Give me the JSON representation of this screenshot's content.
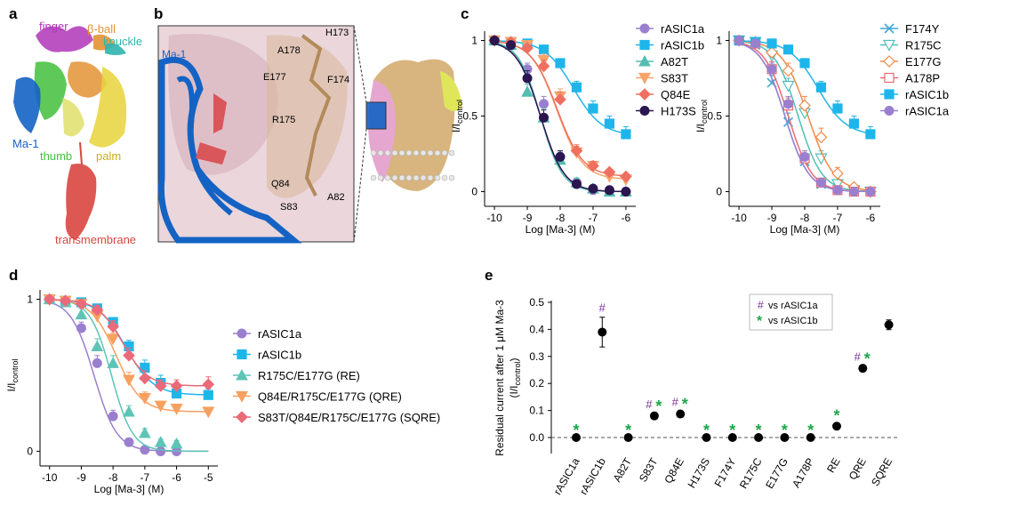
{
  "panels": {
    "a": "a",
    "b": "b",
    "c": "c",
    "d": "d",
    "e": "e"
  },
  "structure_a": {
    "labels": [
      {
        "key": "finger",
        "text": "finger",
        "color": "#b035b8"
      },
      {
        "key": "beta_ball",
        "text": "β-ball",
        "color": "#e39234"
      },
      {
        "key": "knuckle",
        "text": "knuckle",
        "color": "#2fb5ad"
      },
      {
        "key": "ma1",
        "text": "Ma-1",
        "color": "#1463c4"
      },
      {
        "key": "thumb",
        "text": "thumb",
        "color": "#42bf3c"
      },
      {
        "key": "palm",
        "text": "palm",
        "color": "#e3c82a"
      },
      {
        "key": "tm",
        "text": "transmembrane",
        "color": "#d9463f"
      }
    ]
  },
  "structure_b": {
    "ma1_label": "Ma-1",
    "residues": [
      "H173",
      "A178",
      "E177",
      "F174",
      "R175",
      "Q84",
      "A82",
      "S83"
    ]
  },
  "colors": {
    "rASIC1a": "#9b7fcf",
    "rASIC1b": "#1eb6ea",
    "A82T": "#55bdb2",
    "S83T": "#f7a46b",
    "Q84E": "#ef7060",
    "H173S": "#2b1650",
    "F174Y": "#3fa9d8",
    "R175C": "#4fbfb8",
    "E177G": "#f08a4b",
    "A178P": "#ea6a72",
    "RE": "#5ec4b6",
    "QRE": "#f7a060",
    "SQRE": "#ea6a7a",
    "hash": "#7b2d93",
    "star": "#1fa64a"
  },
  "chart_data": [
    {
      "id": "c_left",
      "type": "line",
      "xlabel": "Log [Ma-3] (M)",
      "ylabel": "I/I",
      "ylabel_sub": "control",
      "xlim": [
        -10.3,
        -5.7
      ],
      "ylim": [
        -0.05,
        1.05
      ],
      "xticks": [
        "-10",
        "-9",
        "-8",
        "-7",
        "-6"
      ],
      "yticks": [
        "0",
        "0.5",
        "1"
      ],
      "x": [
        -10,
        -9.5,
        -9,
        -8.5,
        -8,
        -7.5,
        -7,
        -6.5,
        -6
      ],
      "series": [
        {
          "name": "rASIC1a",
          "marker": "circle",
          "ic50": -8.6,
          "hill": 1.2,
          "bottom": 0,
          "values": [
            1,
            0.98,
            0.81,
            0.58,
            0.23,
            0.06,
            0.01,
            0,
            0
          ],
          "err": [
            0,
            0.02,
            0.04,
            0.05,
            0.04,
            0.02,
            0.01,
            0,
            0
          ]
        },
        {
          "name": "rASIC1b",
          "marker": "square",
          "ic50": -7.6,
          "hill": 1.0,
          "bottom": 0.37,
          "values": [
            1,
            0.99,
            0.98,
            0.94,
            0.85,
            0.69,
            0.55,
            0.45,
            0.38
          ],
          "err": [
            0,
            0.01,
            0.02,
            0.02,
            0.03,
            0.04,
            0.05,
            0.05,
            0.05
          ]
        },
        {
          "name": "A82T",
          "marker": "triangle",
          "ic50": -8.6,
          "hill": 1.3,
          "bottom": 0,
          "values": [
            1,
            0.97,
            0.66,
            0.49,
            0.21,
            0.06,
            0.02,
            0,
            0
          ],
          "err": [
            0,
            0.03,
            0.05,
            0.06,
            0.05,
            0.03,
            0.01,
            0,
            0
          ]
        },
        {
          "name": "S83T",
          "marker": "triangle-down",
          "ic50": -8.1,
          "hill": 1.1,
          "bottom": 0.08,
          "values": [
            1,
            0.99,
            0.97,
            0.87,
            0.63,
            0.26,
            0.17,
            0.1,
            0.08
          ],
          "err": [
            0,
            0.01,
            0.02,
            0.04,
            0.05,
            0.04,
            0.03,
            0.02,
            0.02
          ]
        },
        {
          "name": "Q84E",
          "marker": "diamond",
          "ic50": -8.1,
          "hill": 1.1,
          "bottom": 0.1,
          "values": [
            1,
            0.99,
            0.95,
            0.83,
            0.61,
            0.27,
            0.17,
            0.13,
            0.1
          ],
          "err": [
            0,
            0.01,
            0.02,
            0.04,
            0.05,
            0.04,
            0.03,
            0.02,
            0.02
          ]
        },
        {
          "name": "H173S",
          "marker": "circle",
          "ic50": -8.6,
          "hill": 1.2,
          "bottom": 0,
          "values": [
            1,
            0.97,
            0.75,
            0.49,
            0.23,
            0.05,
            0.02,
            0.01,
            0
          ],
          "err": [
            0,
            0.02,
            0.05,
            0.05,
            0.04,
            0.02,
            0.01,
            0,
            0
          ]
        }
      ]
    },
    {
      "id": "c_right",
      "type": "line",
      "xlabel": "Log [Ma-3] (M)",
      "ylabel": "I/I",
      "ylabel_sub": "control",
      "xlim": [
        -10.3,
        -5.7
      ],
      "ylim": [
        -0.05,
        1.05
      ],
      "xticks": [
        "-10",
        "-9",
        "-8",
        "-7",
        "-6"
      ],
      "yticks": [
        "0",
        "0.5",
        "1"
      ],
      "x": [
        -10,
        -9.5,
        -9,
        -8.5,
        -8,
        -7.5,
        -7,
        -6.5,
        -6
      ],
      "series": [
        {
          "name": "F174Y",
          "marker": "x",
          "ic50": -8.6,
          "hill": 1.2,
          "bottom": 0,
          "values": [
            1,
            0.97,
            0.72,
            0.46,
            0.2,
            0.05,
            0.01,
            0,
            0
          ],
          "err": [
            0,
            0.03,
            0.05,
            0.06,
            0.05,
            0.02,
            0.01,
            0,
            0
          ]
        },
        {
          "name": "R175C",
          "marker": "triangle-down-open",
          "ic50": -8.2,
          "hill": 1.2,
          "bottom": 0,
          "values": [
            1,
            0.99,
            0.9,
            0.7,
            0.52,
            0.22,
            0.05,
            0.01,
            0
          ],
          "err": [
            0,
            0.01,
            0.04,
            0.05,
            0.06,
            0.05,
            0.02,
            0.01,
            0
          ]
        },
        {
          "name": "E177G",
          "marker": "diamond-open",
          "ic50": -7.9,
          "hill": 1.1,
          "bottom": 0,
          "values": [
            1,
            0.99,
            0.92,
            0.8,
            0.57,
            0.36,
            0.12,
            0.03,
            0
          ],
          "err": [
            0,
            0.01,
            0.03,
            0.05,
            0.06,
            0.06,
            0.04,
            0.02,
            0
          ]
        },
        {
          "name": "A178P",
          "marker": "square-open",
          "ic50": -8.5,
          "hill": 1.2,
          "bottom": 0,
          "values": [
            1,
            0.98,
            0.81,
            0.57,
            0.22,
            0.06,
            0.01,
            0,
            0
          ],
          "err": [
            0,
            0.02,
            0.05,
            0.05,
            0.05,
            0.02,
            0.01,
            0,
            0
          ]
        },
        {
          "name": "rASIC1b",
          "marker": "square",
          "ic50": -7.6,
          "hill": 1.0,
          "bottom": 0.37,
          "values": [
            1,
            0.99,
            0.98,
            0.94,
            0.85,
            0.69,
            0.55,
            0.45,
            0.38
          ],
          "err": [
            0,
            0.01,
            0.02,
            0.02,
            0.03,
            0.04,
            0.05,
            0.05,
            0.05
          ]
        },
        {
          "name": "rASIC1a",
          "marker": "circle",
          "ic50": -8.6,
          "hill": 1.2,
          "bottom": 0,
          "values": [
            1,
            0.98,
            0.81,
            0.58,
            0.23,
            0.06,
            0.01,
            0,
            0
          ],
          "err": [
            0,
            0.02,
            0.04,
            0.05,
            0.04,
            0.02,
            0.01,
            0,
            0
          ]
        }
      ]
    },
    {
      "id": "d",
      "type": "line",
      "xlabel": "Log [Ma-3] (M)",
      "ylabel": "I/I",
      "ylabel_sub": "control",
      "xlim": [
        -10.3,
        -4.7
      ],
      "ylim": [
        -0.05,
        1.05
      ],
      "xticks": [
        "-10",
        "-9",
        "-8",
        "-7",
        "-6",
        "-5"
      ],
      "yticks": [
        "0",
        "1"
      ],
      "x": [
        -10,
        -9.5,
        -9,
        -8.5,
        -8,
        -7.5,
        -7,
        -6.5,
        -6,
        -5
      ],
      "series": [
        {
          "name": "rASIC1a",
          "marker": "circle",
          "ic50": -8.6,
          "hill": 1.2,
          "bottom": 0,
          "values": [
            1,
            0.98,
            0.81,
            0.58,
            0.23,
            0.06,
            0.01,
            0,
            0,
            null
          ],
          "err": [
            0,
            0.02,
            0.04,
            0.05,
            0.04,
            0.02,
            0.01,
            0,
            0,
            0
          ]
        },
        {
          "name": "rASIC1b",
          "marker": "square",
          "ic50": -7.6,
          "hill": 1.0,
          "bottom": 0.37,
          "values": [
            1,
            0.99,
            0.98,
            0.94,
            0.85,
            0.69,
            0.55,
            0.45,
            0.38,
            0.37
          ],
          "err": [
            0,
            0.01,
            0.02,
            0.02,
            0.03,
            0.04,
            0.05,
            0.05,
            0.05,
            0.04
          ]
        },
        {
          "name": "R175C/E177G (RE)",
          "marker": "triangle",
          "ic50": -8.05,
          "hill": 1.3,
          "bottom": 0,
          "values": [
            1,
            0.98,
            0.9,
            0.69,
            0.58,
            0.26,
            0.12,
            0.06,
            0.05,
            null
          ],
          "err": [
            0,
            0.02,
            0.04,
            0.05,
            0.05,
            0.04,
            0.03,
            0.02,
            0.02,
            0
          ]
        },
        {
          "name": "Q84E/R175C/E177G (QRE)",
          "marker": "triangle-down",
          "ic50": -7.9,
          "hill": 1.1,
          "bottom": 0.26,
          "values": [
            1,
            0.99,
            0.97,
            0.89,
            0.74,
            0.47,
            0.35,
            0.3,
            0.28,
            0.26
          ],
          "err": [
            0,
            0.01,
            0.02,
            0.03,
            0.04,
            0.05,
            0.04,
            0.03,
            0.03,
            0.02
          ]
        },
        {
          "name": "S83T/Q84E/R175C/E177G (SQRE)",
          "marker": "diamond",
          "ic50": -7.7,
          "hill": 1.1,
          "bottom": 0.43,
          "values": [
            1,
            0.99,
            0.97,
            0.93,
            0.82,
            0.63,
            0.48,
            0.43,
            0.43,
            0.44
          ],
          "err": [
            0,
            0.01,
            0.02,
            0.03,
            0.04,
            0.05,
            0.05,
            0.04,
            0.04,
            0.05
          ]
        }
      ]
    },
    {
      "id": "e",
      "type": "scatter",
      "ylabel": "Residual current after 1 μM Ma-3",
      "ylabel2": "(I/I",
      "ylabel2_sub": "control",
      "ylabel2_end": ")",
      "ylim": [
        -0.03,
        0.5
      ],
      "yticks": [
        "0.0",
        "0.1",
        "0.2",
        "0.3",
        "0.4",
        "0.5"
      ],
      "categories": [
        "rASIC1a",
        "rASIC1b",
        "A82T",
        "S83T",
        "Q84E",
        "H173S",
        "F174Y",
        "R175C",
        "E177G",
        "A178P",
        "RE",
        "QRE",
        "SQRE"
      ],
      "values": [
        0,
        0.39,
        0,
        0.08,
        0.087,
        0,
        0,
        0,
        0,
        0,
        0.042,
        0.256,
        0.417
      ],
      "err": [
        0,
        0.055,
        0,
        0.008,
        0.01,
        0,
        0,
        0,
        0,
        0,
        0.012,
        0.008,
        0.018
      ],
      "hash": [
        false,
        true,
        false,
        true,
        true,
        false,
        false,
        false,
        false,
        false,
        false,
        true,
        false
      ],
      "star": [
        true,
        false,
        true,
        true,
        true,
        true,
        true,
        true,
        true,
        true,
        true,
        true,
        false
      ],
      "legend": [
        {
          "symbol": "#",
          "text": "vs rASIC1a"
        },
        {
          "symbol": "*",
          "text": "vs rASIC1b"
        }
      ]
    }
  ]
}
